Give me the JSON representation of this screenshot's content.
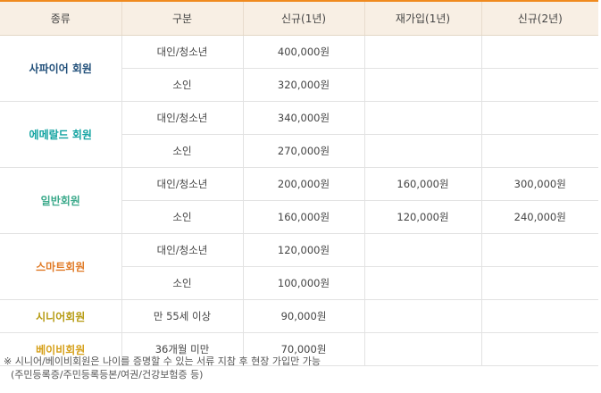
{
  "headers": [
    "종류",
    "구분",
    "신규(1년)",
    "재가입(1년)",
    "신규(2년)"
  ],
  "groups": [
    {
      "type": "사파이어 회원",
      "color": "#1f4e79",
      "rows": [
        {
          "category": "대인/청소년",
          "new1": "400,000원",
          "re1": "",
          "new2": ""
        },
        {
          "category": "소인",
          "new1": "320,000원",
          "re1": "",
          "new2": ""
        }
      ]
    },
    {
      "type": "에메랄드 회원",
      "color": "#12a3a1",
      "rows": [
        {
          "category": "대인/청소년",
          "new1": "340,000원",
          "re1": "",
          "new2": ""
        },
        {
          "category": "소인",
          "new1": "270,000원",
          "re1": "",
          "new2": ""
        }
      ]
    },
    {
      "type": "일반회원",
      "color": "#3aa98a",
      "rows": [
        {
          "category": "대인/청소년",
          "new1": "200,000원",
          "re1": "160,000원",
          "new2": "300,000원"
        },
        {
          "category": "소인",
          "new1": "160,000원",
          "re1": "120,000원",
          "new2": "240,000원"
        }
      ]
    },
    {
      "type": "스마트회원",
      "color": "#e07a26",
      "rows": [
        {
          "category": "대인/청소년",
          "new1": "120,000원",
          "re1": "",
          "new2": ""
        },
        {
          "category": "소인",
          "new1": "100,000원",
          "re1": "",
          "new2": ""
        }
      ]
    },
    {
      "type": "시니어회원",
      "color": "#b69b12",
      "rows": [
        {
          "category": "만 55세 이상",
          "new1": "90,000원",
          "re1": "",
          "new2": ""
        }
      ]
    },
    {
      "type": "베이비회원",
      "color": "#d6a019",
      "rows": [
        {
          "category": "36개월 미만",
          "new1": "70,000원",
          "re1": "",
          "new2": ""
        }
      ]
    }
  ],
  "note": {
    "line1": "※ 시니어/베이비회원은 나이를 증명할 수 있는 서류 지참 후 현장 가입만 가능",
    "line2": "(주민등록증/주민등록등본/여권/건강보험증 등)"
  }
}
